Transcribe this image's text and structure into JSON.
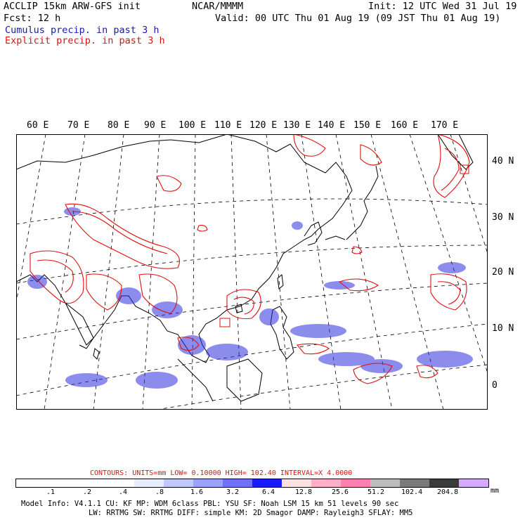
{
  "header": {
    "model_line": "ACCLIP 15km ARW-GFS init",
    "center": "NCAR/MMMM",
    "init": "Init: 12 UTC Wed 31 Jul 19",
    "fcst": "Fcst:   12 h",
    "valid": "Valid: 00 UTC Thu 01 Aug 19 (09 JST Thu 01 Aug 19)",
    "cumulus_label": "Cumulus precip. in past 3 h",
    "explicit_label": "Explicit precip. in past 3 h"
  },
  "map": {
    "longitude_labels": [
      "60 E",
      "70 E",
      "80 E",
      "90 E",
      "100 E",
      "110 E",
      "120 E",
      "130 E",
      "140 E",
      "150 E",
      "160 E",
      "170 E"
    ],
    "latitude_labels": [
      "40 N",
      "30 N",
      "20 N",
      "10 N",
      "0"
    ],
    "colors": {
      "coast": "#000000",
      "explicit": "#e01010",
      "cumulus": "#3030e0",
      "grid": "#000000"
    }
  },
  "contours_line": "CONTOURS:  UNITS=mm  LOW=  0.10000      HIGH=  102.40       INTERVAL=X   4.0000",
  "colorbar": {
    "unit": "mm",
    "colors": [
      "#ffffff",
      "#ffffff",
      "#ffffff",
      "#ffffff",
      "#e8ecff",
      "#c0c8ff",
      "#9aa2ff",
      "#7070ff",
      "#1a1aff",
      "#ffe0e0",
      "#ffb0c8",
      "#ff80b0",
      "#bdbdbd",
      "#7a7a7a",
      "#3a3a3a",
      "#d8a8ff"
    ],
    "labels": [
      ".1",
      ".2",
      ".4",
      ".8",
      "1.6",
      "3.2",
      "6.4",
      "12.8",
      "25.6",
      "51.2",
      "102.4",
      "204.8"
    ]
  },
  "model_info": {
    "line1": "Model Info: V4.1.1    CU: KF      MP: WDM 6class  PBL: YSU        SF: Noah LSM     15 km    51 levels   90 sec",
    "line2": "LW: RRTMG   SW: RRTMG  DIFF: simple KM: 2D Smagor DAMP: Rayleigh3  SFLAY: MM5"
  }
}
